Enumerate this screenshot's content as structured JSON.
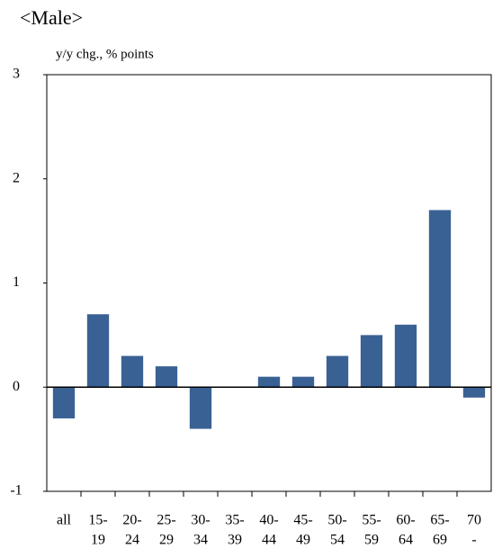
{
  "chart_data": {
    "type": "bar",
    "title": "<Male>",
    "y_label": "y/y chg., % points",
    "categories": [
      [
        "all"
      ],
      [
        "15-",
        "19"
      ],
      [
        "20-",
        "24"
      ],
      [
        "25-",
        "29"
      ],
      [
        "30-",
        "34"
      ],
      [
        "35-",
        "39"
      ],
      [
        "40-",
        "44"
      ],
      [
        "45-",
        "49"
      ],
      [
        "50-",
        "54"
      ],
      [
        "55-",
        "59"
      ],
      [
        "60-",
        "64"
      ],
      [
        "65-",
        "69"
      ],
      [
        "70",
        "-"
      ]
    ],
    "values": [
      -0.3,
      0.7,
      0.3,
      0.2,
      -0.4,
      0,
      0.1,
      0.1,
      0.3,
      0.5,
      0.6,
      1.7,
      -0.1
    ],
    "color": "#3a6194",
    "ylim": [
      -1,
      3
    ],
    "yticks": [
      -1,
      0,
      1,
      2,
      3
    ],
    "grid": false
  }
}
